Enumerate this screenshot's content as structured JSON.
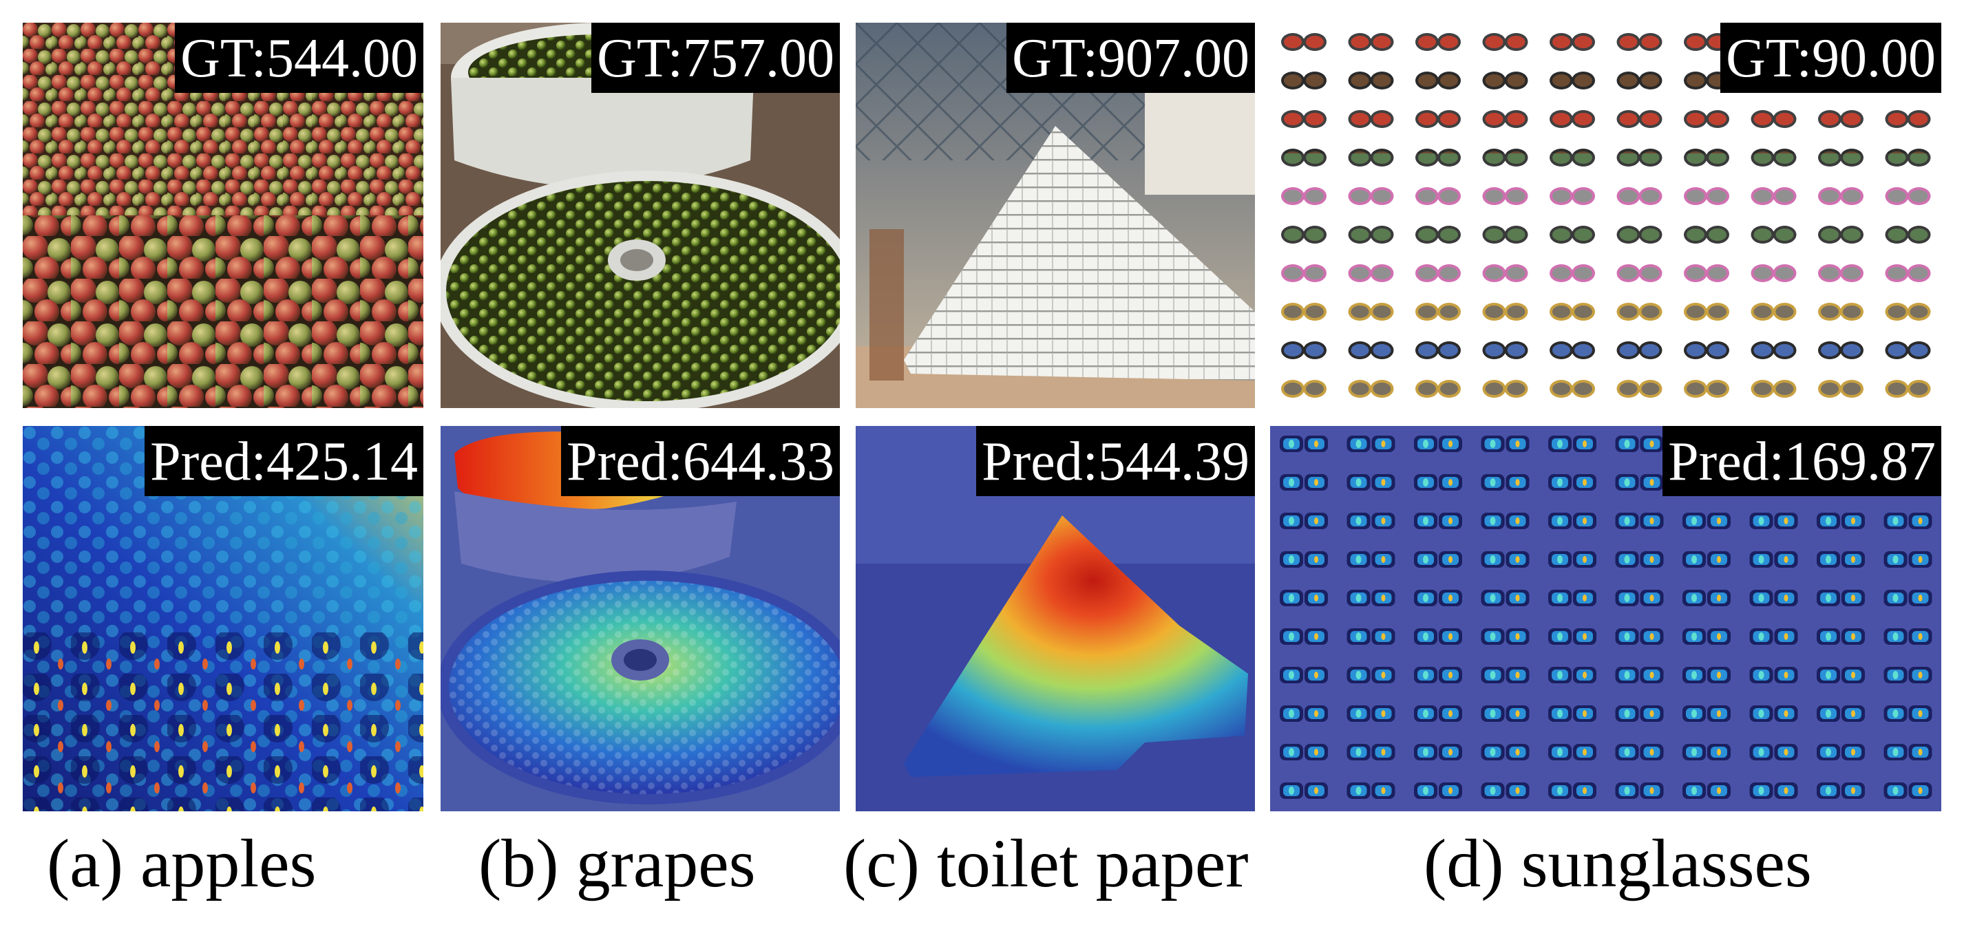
{
  "figure": {
    "panels": [
      {
        "gt": "GT:544.00",
        "pred": "Pred:425.14",
        "caption": "(a) apples"
      },
      {
        "gt": "GT:757.00",
        "pred": "Pred:644.33",
        "caption": "(b) grapes"
      },
      {
        "gt": "GT:907.00",
        "pred": "Pred:544.39",
        "caption": "(c) toilet paper"
      },
      {
        "gt": "GT:90.00",
        "pred": "Pred:169.87",
        "caption": "(d)  sunglasses"
      }
    ]
  }
}
